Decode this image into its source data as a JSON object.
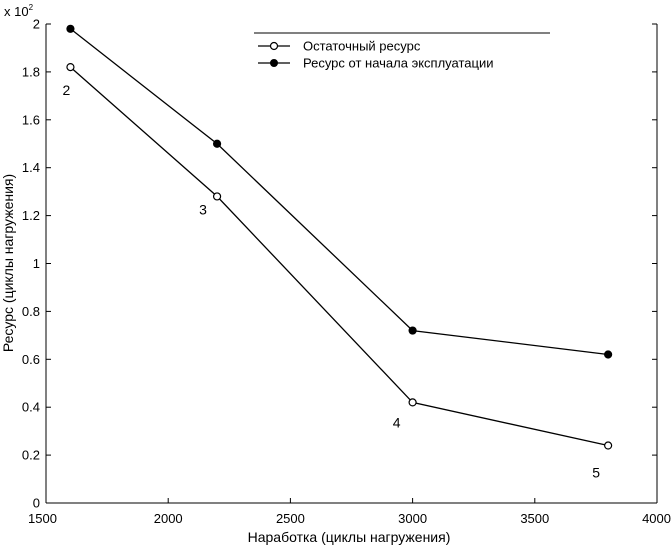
{
  "chart_data": {
    "type": "line",
    "title": "",
    "xlabel": "Наработка (циклы нагружения)",
    "ylabel": "Ресурс (циклы нагружения)",
    "y_multiplier": "x 10",
    "y_multiplier_exp": "2",
    "xlim": [
      1500,
      4000
    ],
    "ylim": [
      0,
      2
    ],
    "x_ticks": [
      1500,
      2000,
      2500,
      3000,
      3500,
      4000
    ],
    "x_tick_labels": [
      "1500",
      "2000",
      "2500",
      "3000",
      "3500",
      "4000"
    ],
    "y_ticks": [
      0,
      0.2,
      0.4,
      0.6,
      0.8,
      1,
      1.2,
      1.4,
      1.6,
      1.8,
      2
    ],
    "y_tick_labels": [
      "0",
      "0.2",
      "0.4",
      "0.6",
      "0.8",
      "1",
      "1.2",
      "1.4",
      "1.6",
      "1.8",
      "2"
    ],
    "legend_position": "top-right",
    "grid": false,
    "colors": {
      "line": "#000000",
      "background": "#ffffff"
    },
    "series": [
      {
        "name": "Остаточный ресурс",
        "marker": "open-circle",
        "x": [
          1600,
          2200,
          3000,
          3800
        ],
        "y": [
          1.82,
          1.28,
          0.42,
          0.24
        ]
      },
      {
        "name": "Ресурс от начала эксплуатации",
        "marker": "filled-circle",
        "x": [
          1600,
          2200,
          3000,
          3800
        ],
        "y": [
          1.98,
          1.5,
          0.72,
          0.62
        ]
      }
    ],
    "point_labels": [
      {
        "text": "2",
        "x": 1600,
        "y": 1.82
      },
      {
        "text": "3",
        "x": 2200,
        "y": 1.28
      },
      {
        "text": "4",
        "x": 3000,
        "y": 0.42
      },
      {
        "text": "5",
        "x": 3800,
        "y": 0.24
      }
    ]
  }
}
